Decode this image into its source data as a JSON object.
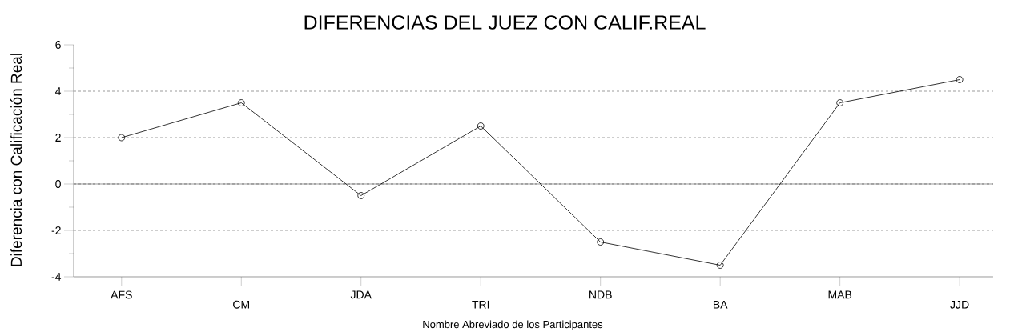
{
  "chart_data": {
    "type": "line",
    "title": "DIFERENCIAS DEL JUEZ CON CALIF.REAL",
    "xlabel": "Nombre Abreviado de los Participantes",
    "ylabel": "Diferencia con Calificación Real",
    "categories": [
      "AFS",
      "CM",
      "JDA",
      "TRI",
      "NDB",
      "BA",
      "MAB",
      "JJD"
    ],
    "values": [
      2,
      3.5,
      -0.5,
      2.5,
      -2.5,
      -3.5,
      3.5,
      4.5
    ],
    "color": "#000000",
    "marker": "circle",
    "line_style": "solid",
    "ylim": [
      -4,
      6
    ],
    "yticks": [
      -4,
      -2,
      0,
      2,
      4,
      6
    ],
    "grid": "y",
    "ref_lines": [
      {
        "axis": "y",
        "value": 0,
        "color": "#000000",
        "line_style": "solid"
      }
    ]
  }
}
